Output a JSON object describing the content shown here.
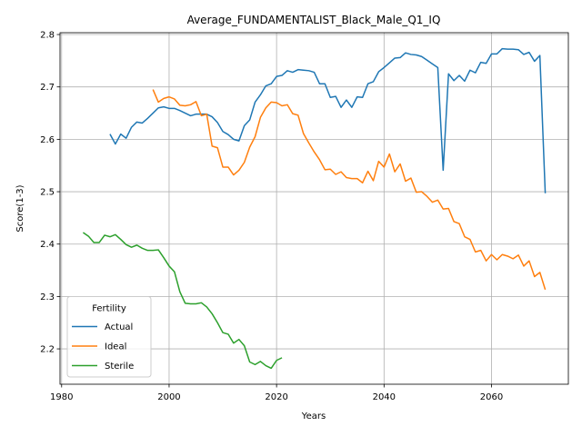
{
  "chart_data": {
    "type": "line",
    "title": "Average_FUNDAMENTALIST_Black_Male_Q1_IQ",
    "xlabel": "Years",
    "ylabel": "Score(1-3)",
    "x": [
      1984,
      1985,
      1986,
      1987,
      1988,
      1989,
      1990,
      1991,
      1992,
      1993,
      1994,
      1995,
      1996,
      1997,
      1998,
      1999,
      2000,
      2001,
      2002,
      2003,
      2004,
      2005,
      2006,
      2007,
      2008,
      2009,
      2010,
      2011,
      2012,
      2013,
      2014,
      2015,
      2016,
      2017,
      2018,
      2019,
      2020,
      2021,
      2022,
      2023,
      2024,
      2025,
      2026,
      2027,
      2028,
      2029,
      2030,
      2031,
      2032,
      2033,
      2034,
      2035,
      2036,
      2037,
      2038,
      2039,
      2040,
      2041,
      2042,
      2043,
      2044,
      2045,
      2046,
      2047,
      2048,
      2049,
      2050,
      2051,
      2052,
      2053,
      2054,
      2055,
      2056,
      2057,
      2058,
      2059,
      2060,
      2061,
      2062,
      2063,
      2064,
      2065,
      2066,
      2067,
      2068,
      2069,
      2070
    ],
    "series": [
      {
        "name": "Actual",
        "color": "#1f77b4",
        "values": [
          null,
          null,
          null,
          null,
          null,
          2.61,
          2.591,
          2.61,
          2.602,
          2.623,
          2.633,
          2.631,
          2.64,
          2.65,
          2.66,
          2.662,
          2.659,
          2.659,
          2.655,
          2.65,
          2.645,
          2.648,
          2.648,
          2.648,
          2.643,
          2.632,
          2.615,
          2.609,
          2.6,
          2.597,
          2.626,
          2.637,
          2.671,
          2.685,
          2.702,
          2.706,
          2.72,
          2.722,
          2.731,
          2.728,
          2.733,
          2.732,
          2.731,
          2.728,
          2.706,
          2.706,
          2.68,
          2.682,
          2.661,
          2.675,
          2.661,
          2.681,
          2.68,
          2.706,
          2.71,
          2.729,
          2.737,
          2.746,
          2.755,
          2.756,
          2.765,
          2.762,
          2.761,
          2.758,
          2.751,
          2.744,
          2.737,
          2.541,
          2.725,
          2.712,
          2.722,
          2.711,
          2.732,
          2.727,
          2.747,
          2.745,
          2.763,
          2.763,
          2.773,
          2.772,
          2.772,
          2.771,
          2.762,
          2.766,
          2.749,
          2.76,
          2.497
        ]
      },
      {
        "name": "Ideal",
        "color": "#ff7f0e",
        "values": [
          null,
          null,
          null,
          null,
          null,
          null,
          null,
          null,
          null,
          null,
          null,
          null,
          null,
          2.695,
          2.671,
          2.678,
          2.681,
          2.677,
          2.665,
          2.664,
          2.666,
          2.672,
          2.645,
          2.648,
          2.587,
          2.584,
          2.547,
          2.547,
          2.532,
          2.541,
          2.556,
          2.585,
          2.605,
          2.642,
          2.66,
          2.671,
          2.67,
          2.664,
          2.666,
          2.649,
          2.646,
          2.611,
          2.593,
          2.576,
          2.561,
          2.542,
          2.543,
          2.533,
          2.538,
          2.527,
          2.525,
          2.525,
          2.517,
          2.539,
          2.521,
          2.558,
          2.547,
          2.572,
          2.538,
          2.553,
          2.52,
          2.526,
          2.499,
          2.5,
          2.491,
          2.48,
          2.484,
          2.467,
          2.468,
          2.443,
          2.439,
          2.414,
          2.409,
          2.385,
          2.388,
          2.368,
          2.38,
          2.37,
          2.38,
          2.377,
          2.372,
          2.379,
          2.358,
          2.368,
          2.338,
          2.346,
          2.313
        ]
      },
      {
        "name": "Sterile",
        "color": "#2ca02c",
        "values": [
          2.422,
          2.415,
          2.403,
          2.403,
          2.417,
          2.414,
          2.418,
          2.409,
          2.399,
          2.394,
          2.398,
          2.392,
          2.388,
          2.388,
          2.389,
          2.374,
          2.358,
          2.347,
          2.309,
          2.287,
          2.286,
          2.286,
          2.288,
          2.28,
          2.267,
          2.25,
          2.231,
          2.228,
          2.211,
          2.218,
          2.206,
          2.175,
          2.17,
          2.176,
          2.168,
          2.163,
          2.178,
          2.183,
          null,
          null,
          null,
          null,
          null,
          null,
          null,
          null,
          null,
          null,
          null,
          null,
          null,
          null,
          null,
          null,
          null,
          null,
          null,
          null,
          null,
          null,
          null,
          null,
          null,
          null,
          null,
          null,
          null,
          null,
          null,
          null,
          null,
          null,
          null,
          null,
          null,
          null,
          null,
          null,
          null,
          null,
          null,
          null,
          null,
          null,
          null,
          null,
          null
        ]
      }
    ],
    "xlim": [
      1979.7,
      2074.3
    ],
    "xticks": [
      1980,
      2000,
      2020,
      2040,
      2060
    ],
    "ylim": [
      2.1325,
      2.8035
    ],
    "yticks": [
      2.2,
      2.3,
      2.4,
      2.5,
      2.6,
      2.7,
      2.8
    ],
    "grid": true,
    "legend": {
      "title": "Fertility",
      "loc": "lower left"
    }
  }
}
